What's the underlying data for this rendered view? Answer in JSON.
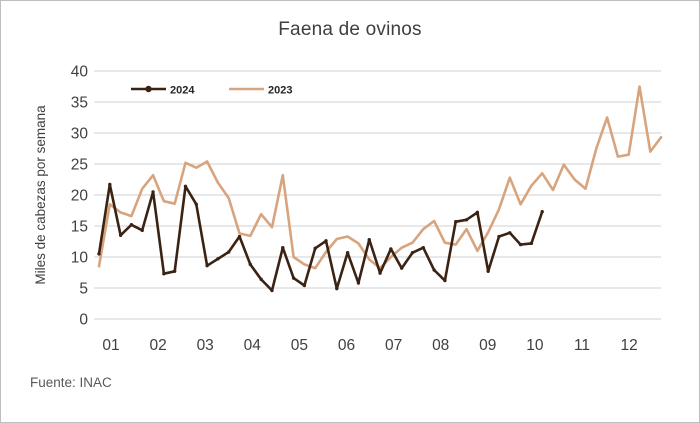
{
  "chart_data": {
    "type": "line",
    "title": "Faena de ovinos",
    "xlabel": "",
    "ylabel": "Miles de cabezas por semana",
    "source_note": "Fuente: INAC",
    "x_unit": "semana (weekly data)",
    "x_tick_labels": [
      "01",
      "02",
      "03",
      "04",
      "05",
      "06",
      "07",
      "08",
      "09",
      "10",
      "11",
      "12"
    ],
    "ylim": [
      0,
      40
    ],
    "yticks": [
      0,
      5,
      10,
      15,
      20,
      25,
      30,
      35,
      40
    ],
    "grid": "horizontal",
    "legend_position": "top-left-inside",
    "colors": {
      "series_2024": "#3B2314",
      "series_2023": "#D8A47E",
      "gridline": "#D9D9D9",
      "axis_text": "#404040",
      "title_text": "#3F3F3F",
      "footer_text": "#595959",
      "legend_text": "#262626",
      "frame_border": "#BEBEBE"
    },
    "series": [
      {
        "name": "2024",
        "color": "#3B2314",
        "marker": "circle",
        "values": [
          10.5,
          21.7,
          13.5,
          15.2,
          14.3,
          20.5,
          7.3,
          7.7,
          21.4,
          18.5,
          8.6,
          9.7,
          10.8,
          13.3,
          8.8,
          6.4,
          4.6,
          11.5,
          6.6,
          5.4,
          11.4,
          12.6,
          4.9,
          10.7,
          5.8,
          12.8,
          7.4,
          11.3,
          8.2,
          10.7,
          11.5,
          7.9,
          6.2,
          15.7,
          16.0,
          17.2,
          7.7,
          13.3,
          13.9,
          12.0,
          12.2,
          17.3
        ]
      },
      {
        "name": "2023",
        "color": "#D8A47E",
        "marker": "none",
        "values": [
          8.5,
          18.5,
          17.2,
          16.6,
          21.0,
          23.2,
          19.0,
          18.6,
          25.2,
          24.4,
          25.4,
          22.0,
          19.5,
          13.8,
          13.4,
          16.9,
          14.8,
          23.2,
          10.0,
          8.8,
          8.2,
          10.8,
          12.9,
          13.3,
          12.2,
          9.6,
          8.2,
          10.0,
          11.5,
          12.3,
          14.5,
          15.8,
          12.3,
          12.0,
          14.5,
          11.0,
          14.0,
          17.7,
          22.8,
          18.5,
          21.5,
          23.5,
          20.8,
          24.9,
          22.5,
          21.0,
          27.5,
          32.5,
          26.2,
          26.5,
          37.5,
          27.0,
          29.3
        ]
      }
    ]
  }
}
